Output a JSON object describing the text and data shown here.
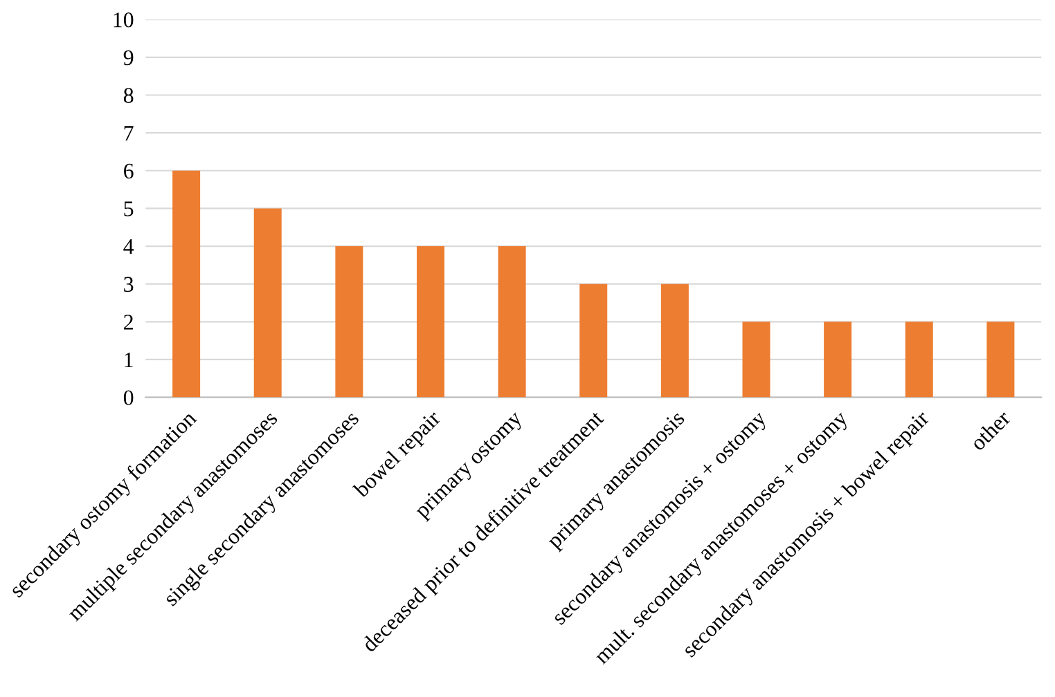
{
  "chart_data": {
    "type": "bar",
    "categories": [
      "secondary ostomy formation",
      "multiple secondary anastomoses",
      "single secondary anastomoses",
      "bowel repair",
      "primary ostomy",
      "deceased prior to definitive treatment",
      "primary anastomosis",
      "secondary anastomosis + ostomy",
      "mult. secondary anastomoses + ostomy",
      "secondary anastomosis + bowel repair",
      "other"
    ],
    "values": [
      6,
      5,
      4,
      4,
      4,
      3,
      3,
      2,
      2,
      2,
      2
    ],
    "color": "#ed7d31",
    "ylim": [
      0,
      10
    ],
    "yticks": [
      0,
      1,
      2,
      3,
      4,
      5,
      6,
      7,
      8,
      9,
      10
    ],
    "grid": "y",
    "legend": false
  }
}
